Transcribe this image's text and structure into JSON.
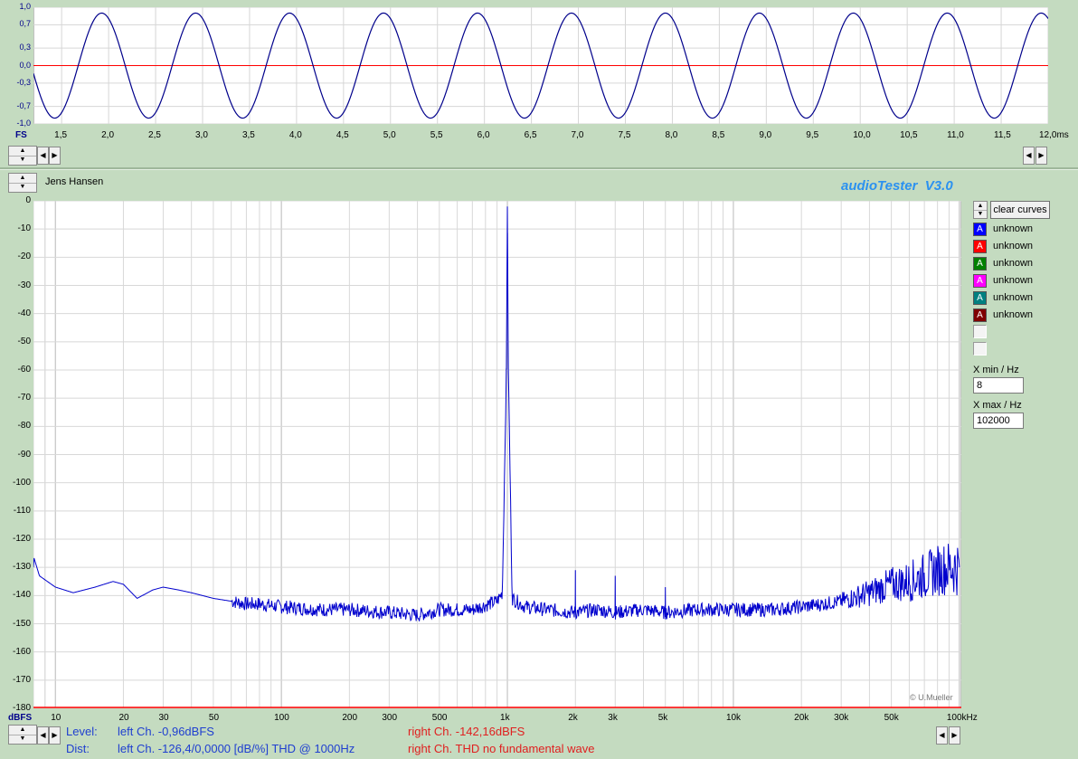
{
  "scope": {
    "y_ticks": [
      "1,0",
      "0,7",
      "0,3",
      "0,0",
      "-0,3",
      "-0,7",
      "-1,0"
    ],
    "unit_label": "FS",
    "x_ticks": [
      "1,5",
      "2,0",
      "2,5",
      "3,0",
      "3,5",
      "4,0",
      "4,5",
      "5,0",
      "5,5",
      "6,0",
      "6,5",
      "7,0",
      "7,5",
      "8,0",
      "8,5",
      "9,0",
      "9,5",
      "10,0",
      "10,5",
      "11,0",
      "11,5",
      "12,0ms"
    ]
  },
  "header": {
    "user_name": "Jens Hansen",
    "app_title": "audioTester  V3.0"
  },
  "spectrum": {
    "y_ticks": [
      "0",
      "-10",
      "-20",
      "-30",
      "-40",
      "-50",
      "-60",
      "-70",
      "-80",
      "-90",
      "-100",
      "-110",
      "-120",
      "-130",
      "-140",
      "-150",
      "-160",
      "-170",
      "-180"
    ],
    "unit_label": "dBFS",
    "x_ticks": [
      "10",
      "20",
      "30",
      "50",
      "100",
      "200",
      "300",
      "500",
      "1k",
      "2k",
      "3k",
      "5k",
      "10k",
      "20k",
      "30k",
      "50k",
      "100kHz"
    ],
    "copyright": "© U.Mueller"
  },
  "legend": {
    "clear_label": "clear curves",
    "items": [
      {
        "badge": "A",
        "label": "unknown",
        "color": "#0000ff"
      },
      {
        "badge": "A",
        "label": "unknown",
        "color": "#ff0000"
      },
      {
        "badge": "A",
        "label": "unknown",
        "color": "#008000"
      },
      {
        "badge": "A",
        "label": "unknown",
        "color": "#ff00ff"
      },
      {
        "badge": "A",
        "label": "unknown",
        "color": "#008080"
      },
      {
        "badge": "A",
        "label": "unknown",
        "color": "#800000"
      }
    ],
    "xmin_label": "X min / Hz",
    "xmin_value": "8",
    "xmax_label": "X max / Hz",
    "xmax_value": "102000"
  },
  "status": {
    "level_label": "Level:",
    "level_left": "left Ch. -0,96dBFS",
    "level_right": "right Ch. -142,16dBFS",
    "dist_label": "Dist:",
    "dist_left": "left Ch. -126,4/0,0000 [dB/%] THD @ 1000Hz",
    "dist_right": "right Ch. THD no fundamental wave"
  },
  "chart_data": [
    {
      "type": "line",
      "title": "",
      "xlabel": "ms",
      "ylabel": "FS",
      "xlim": [
        1.2,
        12.0
      ],
      "ylim": [
        -1.0,
        1.0
      ],
      "series": [
        {
          "name": "",
          "signal": "sine",
          "frequency_hz": 1000,
          "amplitude": 0.9,
          "color": "#00008b"
        }
      ],
      "zero_line_color": "#ff0000",
      "grid": true
    },
    {
      "type": "line",
      "title": "",
      "xlabel": "Hz",
      "ylabel": "dBFS",
      "x_scale": "log",
      "xlim": [
        8,
        102000
      ],
      "ylim": [
        -180,
        0
      ],
      "series": [
        {
          "name": "",
          "color": "#0000cd",
          "points": [
            [
              8,
              -126
            ],
            [
              8.5,
              -133
            ],
            [
              10,
              -137
            ],
            [
              12,
              -139
            ],
            [
              15,
              -137
            ],
            [
              18,
              -135
            ],
            [
              20,
              -136
            ],
            [
              23,
              -141
            ],
            [
              27,
              -138
            ],
            [
              30,
              -137
            ],
            [
              35,
              -138
            ],
            [
              40,
              -139
            ],
            [
              50,
              -141
            ],
            [
              60,
              -142
            ],
            [
              70,
              -143
            ],
            [
              80,
              -143
            ],
            [
              100,
              -144
            ],
            [
              150,
              -145
            ],
            [
              200,
              -145
            ],
            [
              300,
              -146
            ],
            [
              400,
              -147
            ],
            [
              500,
              -145
            ],
            [
              700,
              -145
            ],
            [
              900,
              -142
            ],
            [
              950,
              -139
            ],
            [
              990,
              -60
            ],
            [
              1000,
              -2
            ],
            [
              1010,
              -60
            ],
            [
              1050,
              -141
            ],
            [
              1200,
              -144
            ],
            [
              1500,
              -145
            ],
            [
              1999,
              -146
            ],
            [
              2000,
              -131
            ],
            [
              2001,
              -146
            ],
            [
              2500,
              -145
            ],
            [
              2999,
              -146
            ],
            [
              3000,
              -133
            ],
            [
              3001,
              -146
            ],
            [
              4000,
              -145
            ],
            [
              4999,
              -146
            ],
            [
              5000,
              -137
            ],
            [
              5001,
              -146
            ],
            [
              7000,
              -145
            ],
            [
              10000,
              -145
            ],
            [
              15000,
              -145
            ],
            [
              20000,
              -144
            ],
            [
              25000,
              -143
            ],
            [
              30000,
              -142
            ],
            [
              40000,
              -139
            ],
            [
              50000,
              -136
            ],
            [
              60000,
              -135
            ],
            [
              70000,
              -133
            ],
            [
              80000,
              -131
            ],
            [
              90000,
              -130
            ],
            [
              100000,
              -130
            ]
          ]
        }
      ],
      "baseline_color": "#ff0000",
      "grid": true
    }
  ]
}
